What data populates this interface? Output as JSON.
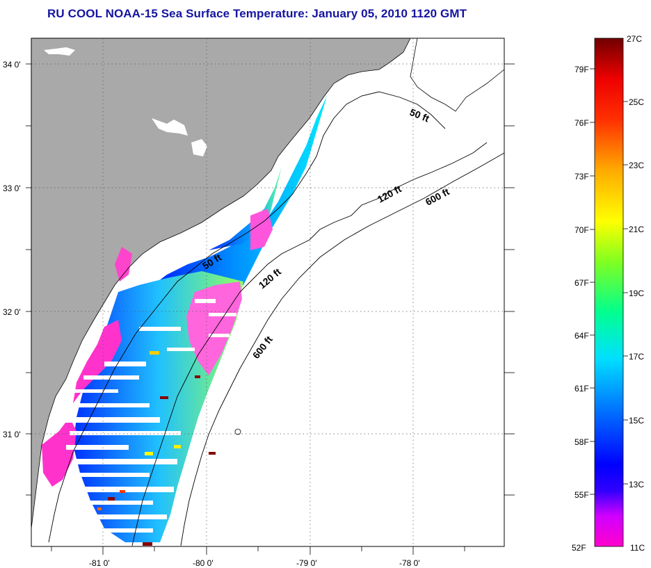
{
  "title": "RU COOL  NOAA-15  Sea Surface Temperature:  January 05, 2010 1120 GMT",
  "map": {
    "lat_ticks": [
      {
        "label": "34 0'",
        "lat": 34
      },
      {
        "label": "33 0'",
        "lat": 33
      },
      {
        "label": "32 0'",
        "lat": 32
      },
      {
        "label": "31 0'",
        "lat": 31
      }
    ],
    "lon_ticks": [
      {
        "label": "-81 0'",
        "lon": -81
      },
      {
        "label": "-80 0'",
        "lon": -80
      },
      {
        "label": "-79 0'",
        "lon": -79
      },
      {
        "label": "-78 0'",
        "lon": -78
      }
    ],
    "contour_labels": [
      "50 ft",
      "120 ft",
      "600 ft",
      "50 ft",
      "120 ft",
      "600 ft"
    ],
    "colors": {
      "land": "#a9a9a9",
      "ocean": "#ffffff",
      "grid": "#555555"
    }
  },
  "colorbar": {
    "fahrenheit": [
      "79F",
      "76F",
      "73F",
      "70F",
      "67F",
      "64F",
      "61F",
      "58F",
      "55F",
      "52F"
    ],
    "celsius": [
      "27C",
      "25C",
      "23C",
      "21C",
      "19C",
      "17C",
      "15C",
      "13C",
      "11C"
    ],
    "min_c": 11,
    "max_c": 27,
    "stops": [
      "#ff00cc",
      "#cc00ff",
      "#0000ff",
      "#0066ff",
      "#00ccff",
      "#00ffee",
      "#66ff66",
      "#ccff00",
      "#ffff00",
      "#ffcc00",
      "#ff8800",
      "#ff3300",
      "#ff0000",
      "#cc0000",
      "#800000"
    ]
  }
}
